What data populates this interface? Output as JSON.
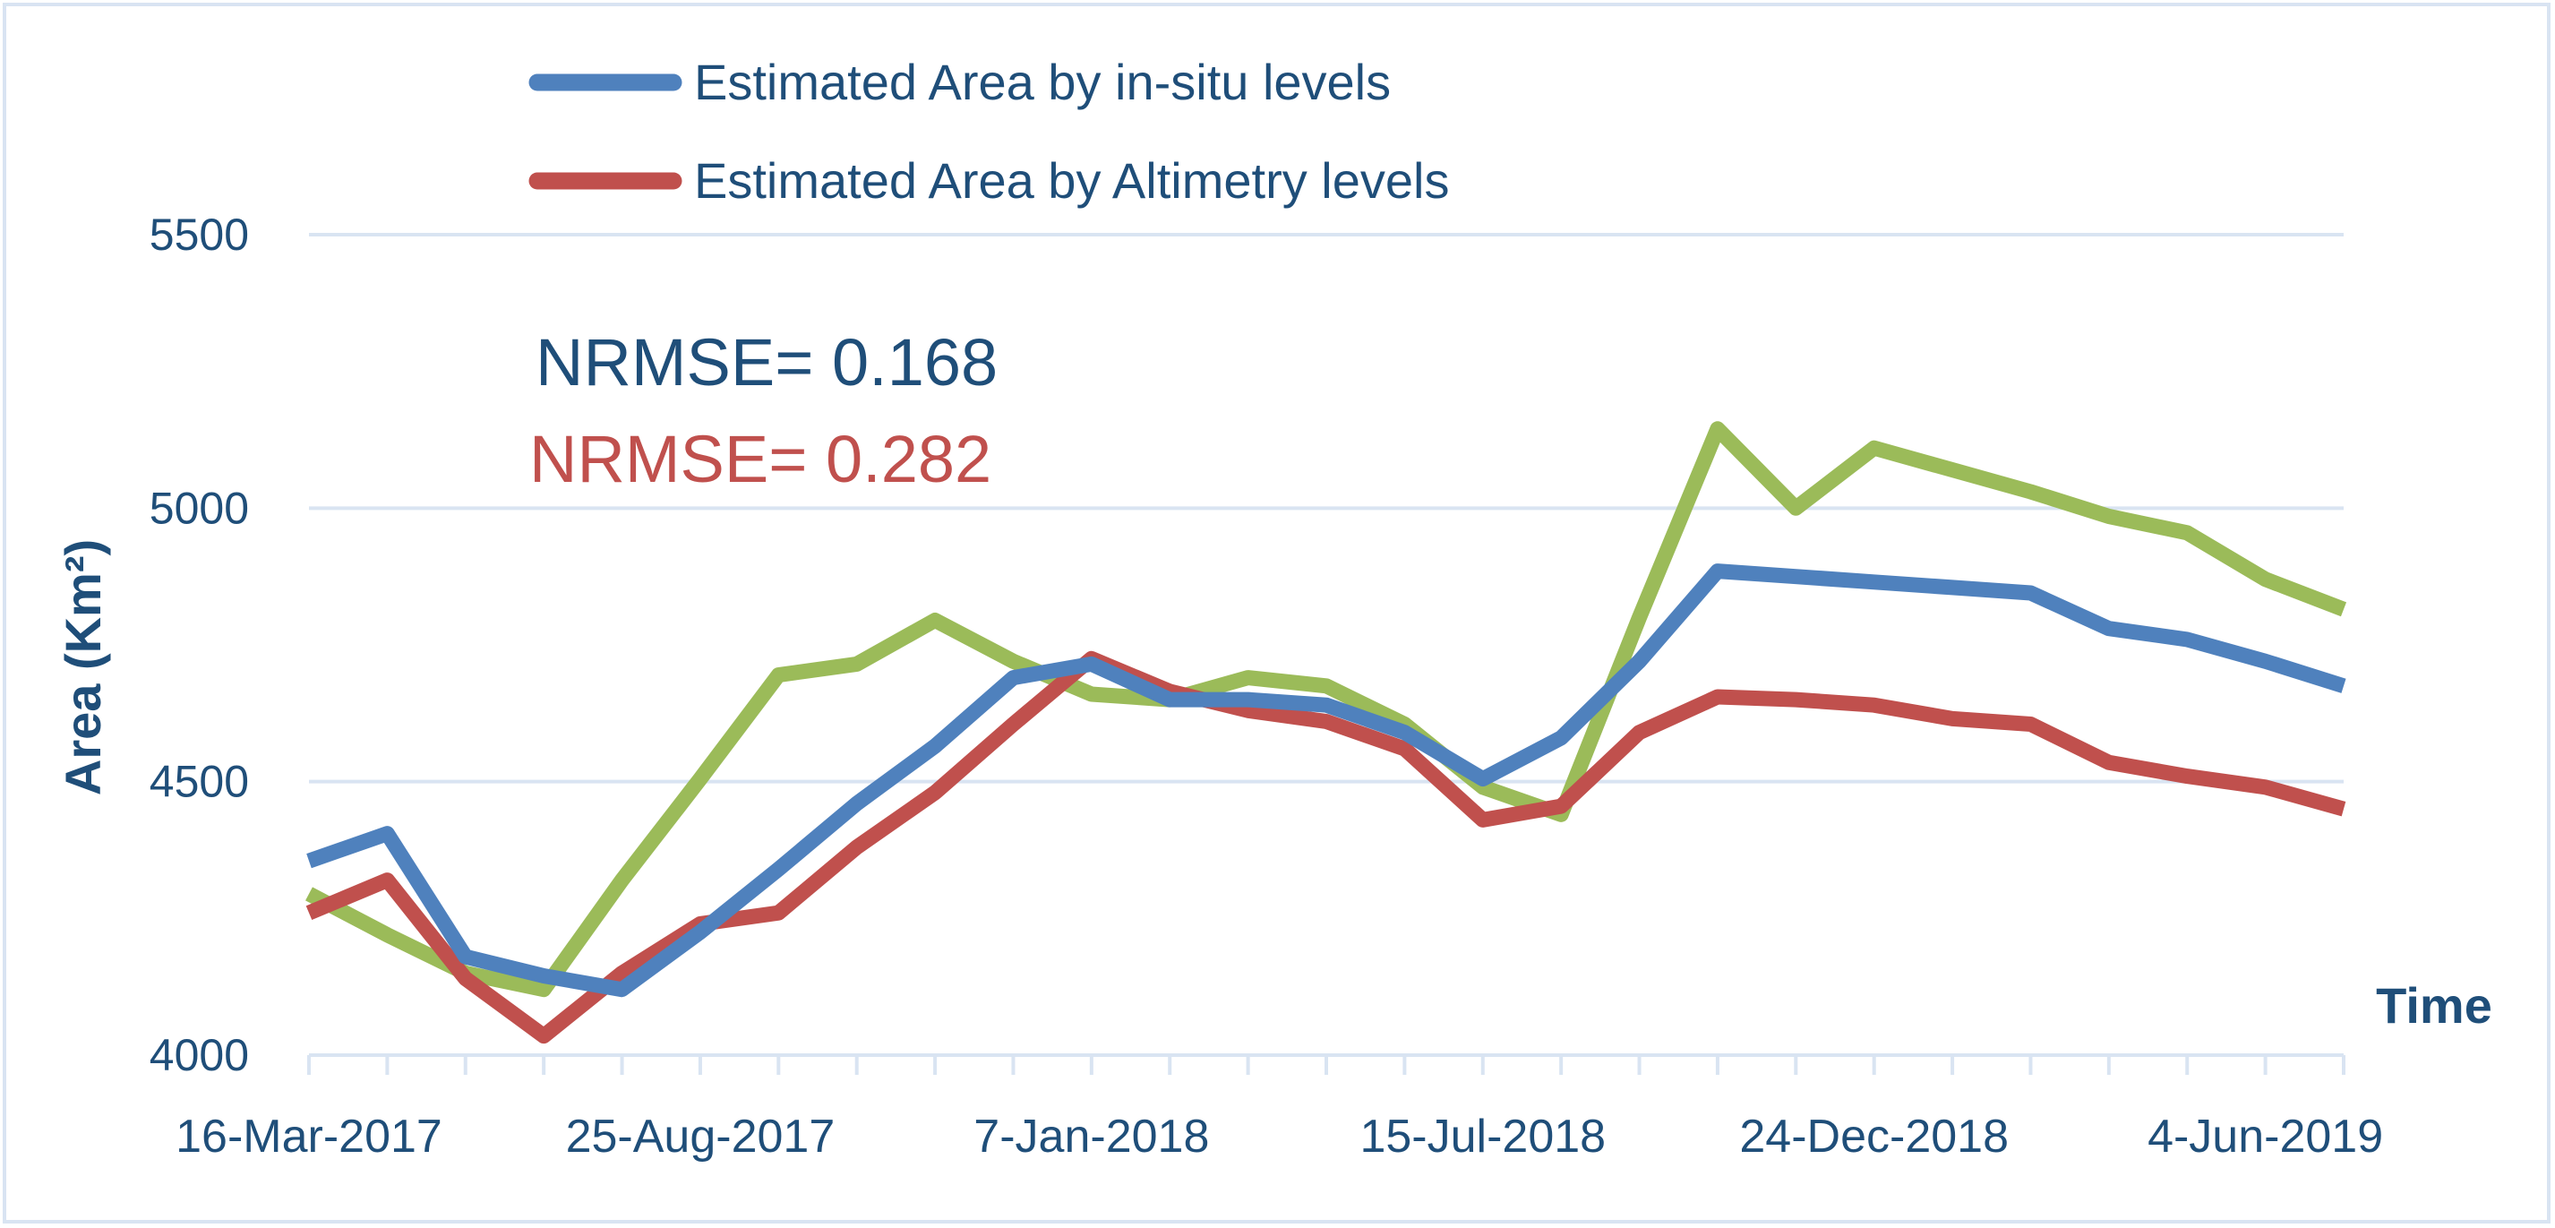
{
  "chart_data": {
    "type": "line",
    "ylabel": "Area (Km²)",
    "xlabel": "Time",
    "ylim": [
      4000,
      5500
    ],
    "y_ticks": [
      4000,
      4500,
      5000,
      5500
    ],
    "grid": "horizontal",
    "legend_position": "top",
    "x_tick_labels": [
      "16-Mar-2017",
      "25-Aug-2017",
      "7-Jan-2018",
      "15-Jul-2018",
      "24-Dec-2018",
      "4-Jun-2019"
    ],
    "annotations": [
      {
        "text": "NRMSE= 0.168",
        "color": "#1f4e79"
      },
      {
        "text": "NRMSE= 0.282",
        "color": "#c0504d"
      }
    ],
    "series": [
      {
        "name": "Estimated Area by in-situ levels",
        "color": "#4f81bd",
        "in_legend": true,
        "values": [
          4355,
          4405,
          4180,
          4145,
          4120,
          4225,
          4340,
          4460,
          4565,
          4690,
          4715,
          4650,
          4650,
          4640,
          4590,
          4505,
          4580,
          4720,
          4885,
          4875,
          4865,
          4855,
          4845,
          4780,
          4760,
          4720,
          4675
        ]
      },
      {
        "name": "Estimated Area by Altimetry levels",
        "color": "#c0504d",
        "in_legend": true,
        "values": [
          4260,
          4320,
          4140,
          4035,
          4150,
          4240,
          4260,
          4380,
          4480,
          4605,
          4725,
          4665,
          4630,
          4610,
          4560,
          4430,
          4455,
          4590,
          4655,
          4650,
          4640,
          4615,
          4605,
          4535,
          4510,
          4490,
          4450
        ]
      },
      {
        "color": "#9bbb59",
        "in_legend": false,
        "values": [
          4295,
          4220,
          4150,
          4120,
          4320,
          4505,
          4695,
          4715,
          4795,
          4720,
          4660,
          4650,
          4690,
          4675,
          4605,
          4490,
          4440,
          4800,
          5145,
          5000,
          5110,
          5070,
          5030,
          4985,
          4955,
          4870,
          4815
        ]
      }
    ]
  }
}
